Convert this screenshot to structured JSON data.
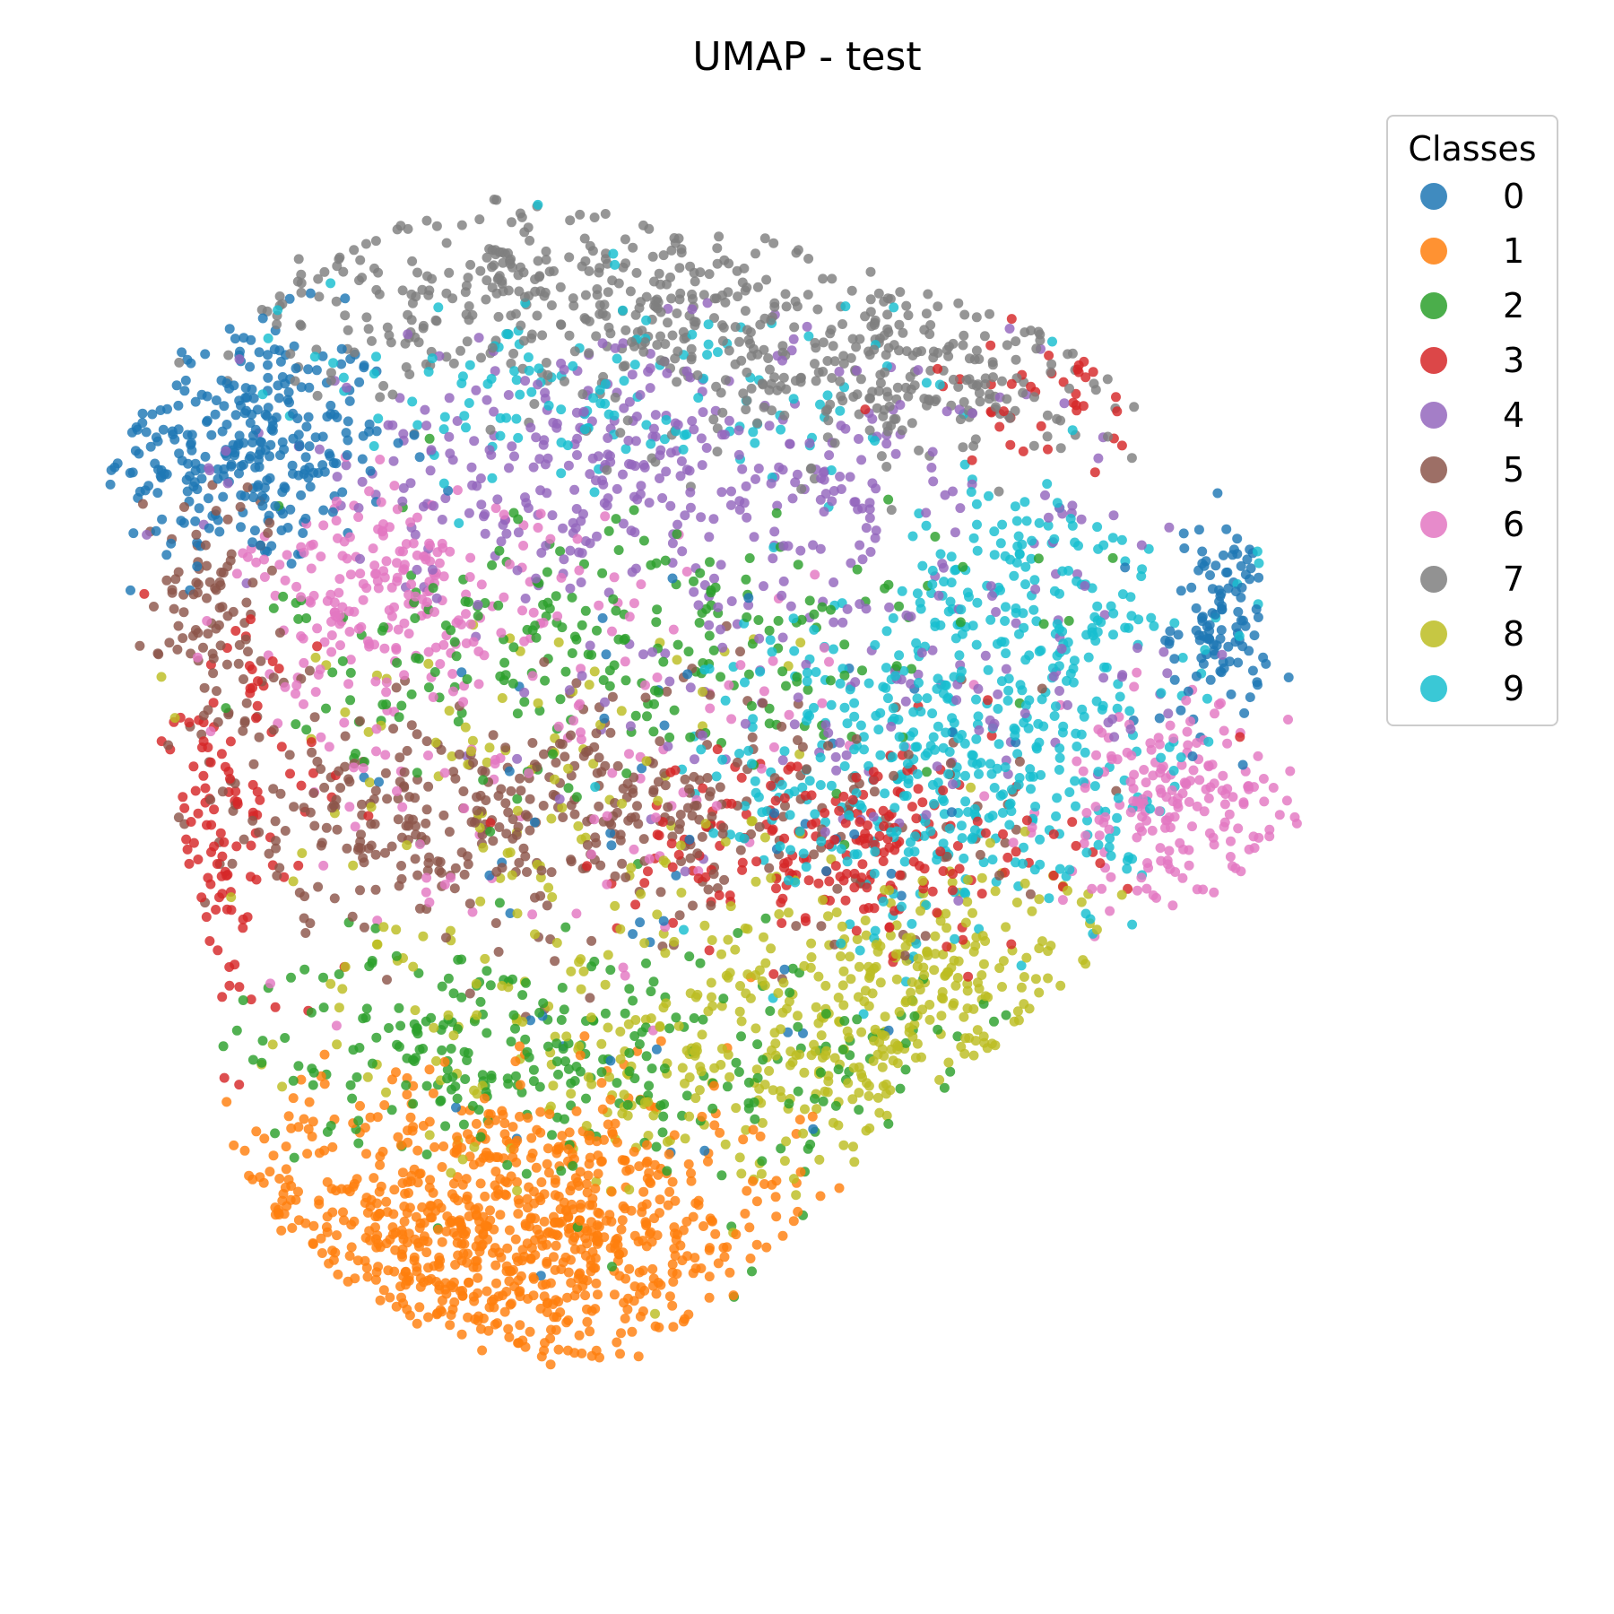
{
  "chart_data": {
    "type": "scatter",
    "title": "UMAP - test",
    "xlabel": "",
    "ylabel": "",
    "axes_visible": false,
    "grid": false,
    "legend": {
      "title": "Classes",
      "placement": "top-right"
    },
    "xlim": [
      0,
      100
    ],
    "ylim": [
      0,
      100
    ],
    "colors": [
      "#1f77b4",
      "#ff7f0e",
      "#2ca02c",
      "#d62728",
      "#9467bd",
      "#8c564b",
      "#e377c2",
      "#7f7f7f",
      "#bcbd22",
      "#17becf"
    ],
    "series": [
      {
        "name": "0",
        "clusters": [
          {
            "center": [
              12,
              76
            ],
            "spread": [
              6,
              5
            ],
            "count": 300
          },
          {
            "center": [
              92,
              62
            ],
            "spread": [
              2,
              4
            ],
            "count": 110
          },
          {
            "center": [
              55,
              40
            ],
            "spread": [
              20,
              12
            ],
            "count": 60
          }
        ]
      },
      {
        "name": "1",
        "clusters": [
          {
            "center": [
              32,
              13
            ],
            "spread": [
              13,
              6
            ],
            "count": 850
          }
        ]
      },
      {
        "name": "2",
        "clusters": [
          {
            "center": [
              32,
              28
            ],
            "spread": [
              10,
              4
            ],
            "count": 220
          },
          {
            "center": [
              43,
              60
            ],
            "spread": [
              14,
              6
            ],
            "count": 240
          },
          {
            "center": [
              60,
              24
            ],
            "spread": [
              12,
              6
            ],
            "count": 80
          }
        ]
      },
      {
        "name": "3",
        "clusters": [
          {
            "center": [
              61,
              44
            ],
            "spread": [
              9,
              4
            ],
            "count": 220
          },
          {
            "center": [
              10,
              45
            ],
            "spread": [
              4,
              8
            ],
            "count": 120
          },
          {
            "center": [
              78,
              80
            ],
            "spread": [
              6,
              3
            ],
            "count": 40
          }
        ]
      },
      {
        "name": "4",
        "clusters": [
          {
            "center": [
              44,
              74
            ],
            "spread": [
              16,
              5
            ],
            "count": 360
          },
          {
            "center": [
              65,
              58
            ],
            "spread": [
              15,
              7
            ],
            "count": 160
          }
        ]
      },
      {
        "name": "5",
        "clusters": [
          {
            "center": [
              28,
              46
            ],
            "spread": [
              12,
              4
            ],
            "count": 270
          },
          {
            "center": [
              9,
              63
            ],
            "spread": [
              3,
              5
            ],
            "count": 100
          },
          {
            "center": [
              52,
              47
            ],
            "spread": [
              12,
              6
            ],
            "count": 170
          }
        ]
      },
      {
        "name": "6",
        "clusters": [
          {
            "center": [
              24,
              64
            ],
            "spread": [
              6,
              4
            ],
            "count": 200
          },
          {
            "center": [
              88,
              47
            ],
            "spread": [
              5,
              4
            ],
            "count": 190
          },
          {
            "center": [
              38,
              52
            ],
            "spread": [
              14,
              10
            ],
            "count": 130
          }
        ]
      },
      {
        "name": "7",
        "clusters": [
          {
            "center": [
              38,
              88
            ],
            "spread": [
              14,
              4
            ],
            "count": 370
          },
          {
            "center": [
              66,
              82
            ],
            "spread": [
              10,
              4
            ],
            "count": 260
          }
        ]
      },
      {
        "name": "8",
        "clusters": [
          {
            "center": [
              56,
              28
            ],
            "spread": [
              15,
              6
            ],
            "count": 340
          },
          {
            "center": [
              70,
              34
            ],
            "spread": [
              8,
              5
            ],
            "count": 150
          },
          {
            "center": [
              35,
              48
            ],
            "spread": [
              12,
              8
            ],
            "count": 110
          }
        ]
      },
      {
        "name": "9",
        "clusters": [
          {
            "center": [
              70,
              50
            ],
            "spread": [
              10,
              7
            ],
            "count": 430
          },
          {
            "center": [
              42,
              80
            ],
            "spread": [
              14,
              4
            ],
            "count": 140
          },
          {
            "center": [
              76,
              64
            ],
            "spread": [
              6,
              5
            ],
            "count": 150
          }
        ]
      }
    ]
  }
}
